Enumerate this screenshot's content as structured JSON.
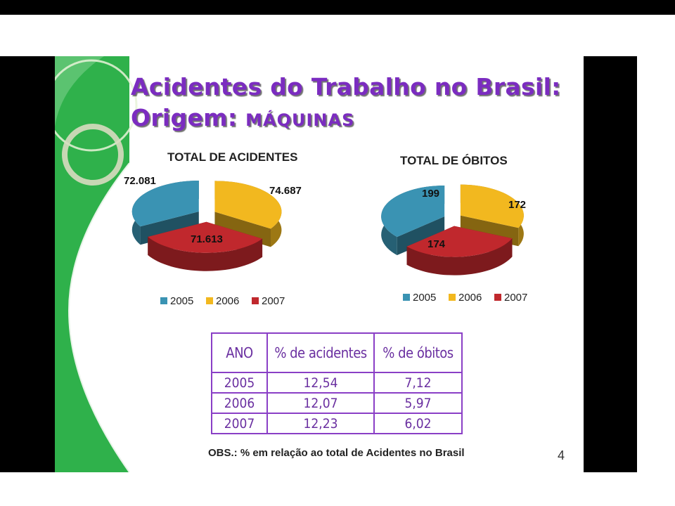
{
  "slide": {
    "title_line1": "Acidentes do Trabalho no Brasil:",
    "title_line2_prefix": "Origem: ",
    "title_line2_suffix": "MÁQUINAS",
    "note": "OBS.: % em relação ao total  de Acidentes no Brasil",
    "page_number": "4"
  },
  "colors": {
    "2005": "#3a93b3",
    "2006": "#f2b81f",
    "2007": "#c0282d",
    "purple": "#7b2cc0",
    "green": "#2fb14b"
  },
  "chart_data": [
    {
      "type": "pie",
      "title": "TOTAL DE ACIDENTES",
      "legend_position": "bottom",
      "series": [
        {
          "name": "2005",
          "value": 72081,
          "label": "72.081"
        },
        {
          "name": "2006",
          "value": 74687,
          "label": "74.687"
        },
        {
          "name": "2007",
          "value": 71613,
          "label": "71.613"
        }
      ]
    },
    {
      "type": "pie",
      "title": "TOTAL DE ÓBITOS",
      "legend_position": "bottom",
      "series": [
        {
          "name": "2005",
          "value": 199,
          "label": "199"
        },
        {
          "name": "2006",
          "value": 172,
          "label": "172"
        },
        {
          "name": "2007",
          "value": 174,
          "label": "174"
        }
      ]
    },
    {
      "type": "table",
      "columns": [
        "ANO",
        "% de acidentes",
        "% de óbitos"
      ],
      "rows": [
        [
          "2005",
          "12,54",
          "7,12"
        ],
        [
          "2006",
          "12,07",
          "5,97"
        ],
        [
          "2007",
          "12,23",
          "6,02"
        ]
      ]
    }
  ]
}
